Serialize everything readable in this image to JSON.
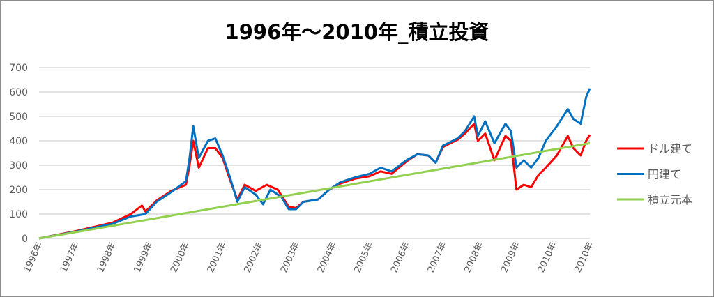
{
  "chart_data": {
    "type": "line",
    "title": "1996年～2010年_積立投資",
    "xlabel": "",
    "ylabel": "",
    "ylim": [
      0,
      700
    ],
    "yticks": [
      0,
      100,
      200,
      300,
      400,
      500,
      600,
      700
    ],
    "xlim": [
      0,
      15
    ],
    "x_tick_labels": [
      "1996年",
      "1997年",
      "1998年",
      "1999年",
      "2000年",
      "2001年",
      "2002年",
      "2003年",
      "2004年",
      "2005年",
      "2006年",
      "2007年",
      "2008年",
      "2009年",
      "2010年",
      "2010年"
    ],
    "grid": true,
    "legend_position": "right",
    "series": [
      {
        "name": "ドル建て",
        "color": "#ff0000",
        "x": [
          0,
          1,
          2,
          2.5,
          2.8,
          2.9,
          3.2,
          3.6,
          4,
          4.1,
          4.2,
          4.35,
          4.6,
          4.8,
          5,
          5.2,
          5.4,
          5.6,
          5.9,
          6.2,
          6.5,
          6.8,
          7,
          7.2,
          7.6,
          7.9,
          8.2,
          8.6,
          9,
          9.3,
          9.6,
          10,
          10.3,
          10.6,
          10.8,
          11,
          11.4,
          11.6,
          11.85,
          11.95,
          12.15,
          12.4,
          12.7,
          12.85,
          13.0,
          13.2,
          13.4,
          13.6,
          13.8,
          14.1,
          14.4,
          14.55,
          14.75,
          14.9,
          15
        ],
        "y": [
          0,
          30,
          65,
          100,
          135,
          110,
          155,
          195,
          220,
          300,
          400,
          290,
          370,
          370,
          330,
          240,
          160,
          220,
          195,
          220,
          200,
          130,
          125,
          150,
          160,
          200,
          225,
          245,
          255,
          275,
          265,
          315,
          345,
          340,
          310,
          375,
          405,
          430,
          470,
          400,
          430,
          320,
          420,
          400,
          200,
          220,
          210,
          260,
          290,
          340,
          420,
          370,
          340,
          400,
          425
        ]
      },
      {
        "name": "円建て",
        "color": "#0070c0",
        "x": [
          0,
          1,
          2,
          2.5,
          2.9,
          3.2,
          3.6,
          4,
          4.1,
          4.2,
          4.35,
          4.6,
          4.8,
          5,
          5.2,
          5.4,
          5.6,
          5.9,
          6.1,
          6.3,
          6.6,
          6.8,
          7,
          7.2,
          7.6,
          7.9,
          8.2,
          8.6,
          9,
          9.3,
          9.6,
          10,
          10.3,
          10.6,
          10.8,
          11,
          11.4,
          11.6,
          11.85,
          11.95,
          12.15,
          12.4,
          12.7,
          12.85,
          13.0,
          13.2,
          13.4,
          13.6,
          13.8,
          14.1,
          14.4,
          14.55,
          14.75,
          14.9,
          15
        ],
        "y": [
          0,
          28,
          60,
          90,
          100,
          150,
          190,
          235,
          330,
          460,
          330,
          400,
          410,
          340,
          250,
          150,
          210,
          180,
          140,
          200,
          170,
          120,
          120,
          150,
          160,
          200,
          230,
          250,
          265,
          290,
          275,
          320,
          345,
          340,
          310,
          380,
          410,
          440,
          500,
          420,
          480,
          390,
          470,
          440,
          290,
          320,
          290,
          330,
          400,
          460,
          530,
          490,
          470,
          580,
          615
        ]
      },
      {
        "name": "積立元本",
        "color": "#92d050",
        "x": [
          0,
          15
        ],
        "y": [
          0,
          390
        ]
      }
    ]
  }
}
